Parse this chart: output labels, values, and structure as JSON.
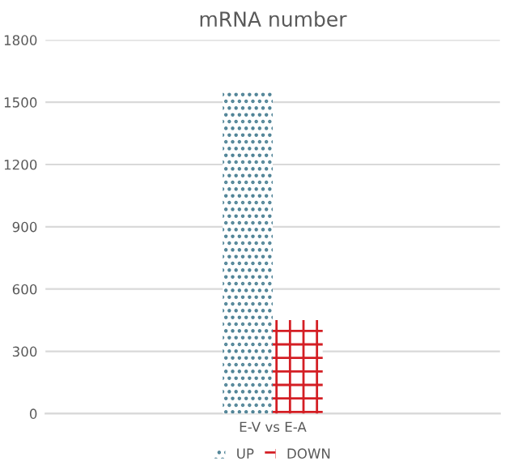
{
  "chart_data": {
    "type": "bar",
    "title": "mRNA number",
    "categories": [
      "E-V vs E-A"
    ],
    "series": [
      {
        "name": "UP",
        "color": "#4f8396",
        "values": [
          1550
        ]
      },
      {
        "name": "DOWN",
        "color": "#d41e24",
        "values": [
          450
        ]
      }
    ],
    "ylim": [
      0,
      1800
    ],
    "yticks": [
      0,
      300,
      600,
      900,
      1200,
      1500,
      1800
    ],
    "grid": "y",
    "legend": "bottom"
  }
}
